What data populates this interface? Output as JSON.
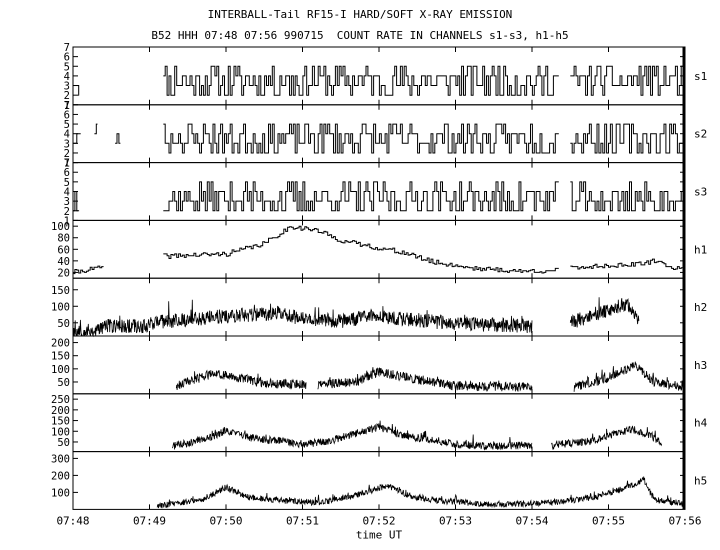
{
  "chart_data": {
    "type": "line",
    "title": "INTERBALL-Tail RF15-I HARD/SOFT X-RAY EMISSION",
    "subtitle": "B52 HHH 07:48 07:56 990715  COUNT RATE IN CHANNELS s1-s3, h1-h5",
    "xlabel": "time UT",
    "x_tick_labels": [
      "07:48",
      "07:49",
      "07:50",
      "07:51",
      "07:52",
      "07:53",
      "07:54",
      "07:55",
      "07:56"
    ],
    "x_tick_minutes": [
      0,
      1,
      2,
      3,
      4,
      5,
      6,
      7,
      8
    ],
    "xlim_minutes": [
      0,
      8
    ],
    "panels": [
      {
        "name": "s1",
        "ylim": [
          1,
          7
        ],
        "ticks": [
          1,
          2,
          3,
          4,
          5,
          6,
          7
        ],
        "tick_labels": [
          "1",
          "2",
          "3",
          "4",
          "5",
          "6",
          "7"
        ],
        "coverage": [
          [
            0.0,
            0.08
          ],
          [
            1.18,
            6.35
          ],
          [
            6.5,
            7.99
          ]
        ],
        "baseline": 3.5,
        "noise": 1.8,
        "envelope": [],
        "style": "step",
        "bins": 320,
        "seed": 11
      },
      {
        "name": "s2",
        "ylim": [
          1,
          7
        ],
        "ticks": [
          1,
          2,
          3,
          4,
          5,
          6,
          7
        ],
        "tick_labels": [
          "1",
          "2",
          "3",
          "4",
          "5",
          "6",
          "7"
        ],
        "coverage": [
          [
            0.0,
            0.1
          ],
          [
            0.28,
            0.32
          ],
          [
            0.55,
            0.62
          ],
          [
            1.18,
            6.35
          ],
          [
            6.5,
            7.99
          ]
        ],
        "baseline": 3.5,
        "noise": 1.6,
        "envelope": [],
        "style": "step",
        "bins": 320,
        "seed": 23
      },
      {
        "name": "s3",
        "ylim": [
          1,
          7
        ],
        "ticks": [
          1,
          2,
          3,
          4,
          5,
          6,
          7
        ],
        "tick_labels": [
          "1",
          "2",
          "3",
          "4",
          "5",
          "6",
          "7"
        ],
        "coverage": [
          [
            0.0,
            0.08
          ],
          [
            1.18,
            6.35
          ],
          [
            6.5,
            7.99
          ]
        ],
        "baseline": 3.2,
        "noise": 1.7,
        "envelope": [],
        "style": "step",
        "bins": 320,
        "seed": 37
      },
      {
        "name": "h1",
        "ylim": [
          10,
          110
        ],
        "ticks": [
          20,
          40,
          60,
          80,
          100
        ],
        "tick_labels": [
          "20",
          "40",
          "60",
          "80",
          "100"
        ],
        "coverage": [
          [
            0.0,
            0.4
          ],
          [
            1.18,
            6.35
          ],
          [
            6.5,
            7.99
          ]
        ],
        "baseline": 30,
        "noise": 4,
        "envelope": [
          [
            0,
            20
          ],
          [
            0.4,
            30
          ],
          [
            1.18,
            48
          ],
          [
            2.0,
            52
          ],
          [
            2.5,
            70
          ],
          [
            2.85,
            100
          ],
          [
            3.2,
            92
          ],
          [
            3.5,
            75
          ],
          [
            4.0,
            62
          ],
          [
            4.3,
            55
          ],
          [
            4.7,
            38
          ],
          [
            5.2,
            28
          ],
          [
            5.8,
            22
          ],
          [
            6.3,
            23
          ],
          [
            6.5,
            28
          ],
          [
            7.0,
            32
          ],
          [
            7.4,
            34
          ],
          [
            7.6,
            40
          ],
          [
            7.85,
            28
          ],
          [
            7.99,
            25
          ]
        ],
        "style": "step",
        "bins": 320,
        "seed": 41
      },
      {
        "name": "h2",
        "ylim": [
          10,
          185
        ],
        "ticks": [
          50,
          100,
          150
        ],
        "tick_labels": [
          "50",
          "100",
          "150"
        ],
        "coverage": [
          [
            0.0,
            6.0
          ],
          [
            6.5,
            7.4
          ]
        ],
        "baseline": 55,
        "noise": 22,
        "envelope": [
          [
            0,
            25
          ],
          [
            0.3,
            25
          ],
          [
            0.4,
            40
          ],
          [
            0.95,
            40
          ],
          [
            1.0,
            50
          ],
          [
            2.0,
            70
          ],
          [
            2.7,
            80
          ],
          [
            3.0,
            62
          ],
          [
            3.5,
            55
          ],
          [
            3.9,
            70
          ],
          [
            4.3,
            62
          ],
          [
            5.0,
            48
          ],
          [
            6.0,
            40
          ],
          [
            6.5,
            50
          ],
          [
            7.0,
            90
          ],
          [
            7.25,
            110
          ],
          [
            7.4,
            60
          ]
        ],
        "style": "noise",
        "bins": 1400,
        "seed": 53
      },
      {
        "name": "h3",
        "ylim": [
          5,
          225
        ],
        "ticks": [
          50,
          100,
          150,
          200
        ],
        "tick_labels": [
          "50",
          "100",
          "150",
          "200"
        ],
        "coverage": [
          [
            1.35,
            3.05
          ],
          [
            3.2,
            6.0
          ],
          [
            6.55,
            7.99
          ]
        ],
        "baseline": 50,
        "noise": 18,
        "envelope": [
          [
            1.35,
            35
          ],
          [
            1.8,
            80
          ],
          [
            2.1,
            70
          ],
          [
            2.5,
            45
          ],
          [
            3.0,
            40
          ],
          [
            3.2,
            40
          ],
          [
            3.7,
            50
          ],
          [
            4.0,
            90
          ],
          [
            4.4,
            65
          ],
          [
            5.0,
            35
          ],
          [
            6.0,
            30
          ],
          [
            6.55,
            30
          ],
          [
            7.0,
            65
          ],
          [
            7.35,
            115
          ],
          [
            7.6,
            50
          ],
          [
            7.99,
            30
          ]
        ],
        "style": "noise",
        "bins": 1400,
        "seed": 61
      },
      {
        "name": "h4",
        "ylim": [
          5,
          275
        ],
        "ticks": [
          50,
          100,
          150,
          200,
          250
        ],
        "tick_labels": [
          "50",
          "100",
          "150",
          "200",
          "250"
        ],
        "coverage": [
          [
            1.3,
            6.0
          ],
          [
            6.25,
            7.7
          ]
        ],
        "baseline": 50,
        "noise": 18,
        "envelope": [
          [
            1.3,
            30
          ],
          [
            1.8,
            70
          ],
          [
            2.0,
            105
          ],
          [
            2.3,
            70
          ],
          [
            2.8,
            50
          ],
          [
            3.0,
            40
          ],
          [
            3.3,
            50
          ],
          [
            3.8,
            100
          ],
          [
            4.0,
            120
          ],
          [
            4.3,
            80
          ],
          [
            4.7,
            60
          ],
          [
            5.0,
            40
          ],
          [
            5.5,
            30
          ],
          [
            6.0,
            35
          ],
          [
            6.25,
            35
          ],
          [
            6.8,
            55
          ],
          [
            7.3,
            110
          ],
          [
            7.5,
            90
          ],
          [
            7.7,
            40
          ]
        ],
        "style": "noise",
        "bins": 1400,
        "seed": 71
      },
      {
        "name": "h5",
        "ylim": [
          0,
          340
        ],
        "ticks": [
          100,
          200,
          300
        ],
        "tick_labels": [
          "100",
          "200",
          "300"
        ],
        "coverage": [
          [
            1.1,
            7.99
          ]
        ],
        "baseline": 40,
        "noise": 18,
        "envelope": [
          [
            1.1,
            20
          ],
          [
            1.7,
            60
          ],
          [
            2.0,
            130
          ],
          [
            2.3,
            70
          ],
          [
            2.8,
            50
          ],
          [
            3.2,
            40
          ],
          [
            3.5,
            60
          ],
          [
            3.9,
            110
          ],
          [
            4.1,
            140
          ],
          [
            4.4,
            80
          ],
          [
            4.8,
            50
          ],
          [
            5.5,
            30
          ],
          [
            6.0,
            35
          ],
          [
            6.5,
            50
          ],
          [
            6.9,
            80
          ],
          [
            7.3,
            140
          ],
          [
            7.45,
            170
          ],
          [
            7.6,
            60
          ],
          [
            7.99,
            30
          ]
        ],
        "style": "noise",
        "bins": 1400,
        "seed": 83
      }
    ]
  }
}
